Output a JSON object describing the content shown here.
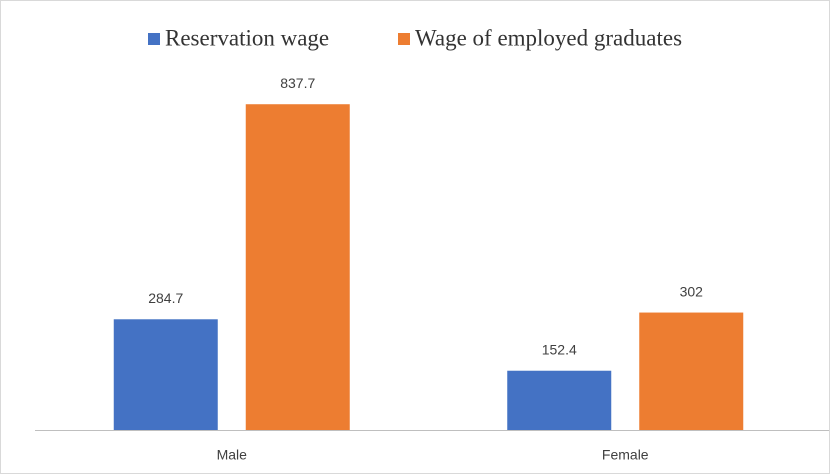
{
  "chart_data": {
    "type": "bar",
    "categories": [
      "Male",
      "Female"
    ],
    "series": [
      {
        "name": "Reservation wage",
        "color": "#4472c4",
        "values": [
          284.7,
          152.4
        ]
      },
      {
        "name": "Wage of employed graduates",
        "color": "#ed7d31",
        "values": [
          837.7,
          302
        ]
      }
    ],
    "ylim": [
      0,
      900
    ],
    "legend": "top"
  }
}
